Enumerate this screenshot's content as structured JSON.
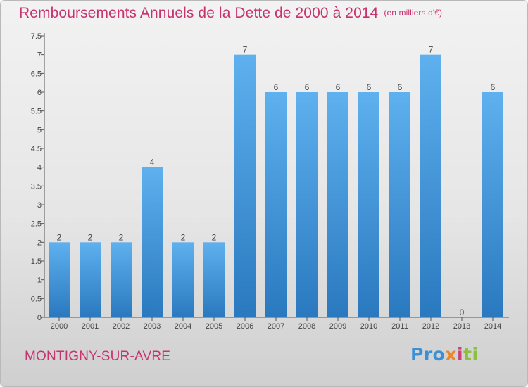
{
  "header": {
    "title": "Remboursements Annuels de la Dette de 2000 à 2014",
    "unit": "(en milliers d'€)"
  },
  "footer": {
    "commune": "MONTIGNY-SUR-AVRE",
    "brand_parts": [
      "Pro",
      "x",
      "i",
      "ti"
    ]
  },
  "colors": {
    "title": "#c8336e",
    "bar_light": "#5eb0ee",
    "bar_dark": "#2a79bf",
    "axis": "#555555",
    "brand_blue": "#3a8fd6",
    "brand_orange": "#e8892e",
    "brand_pink": "#cc3f7a",
    "brand_green": "#8bc03c"
  },
  "chart_data": {
    "type": "bar",
    "title": "Remboursements Annuels de la Dette de 2000 à 2014",
    "unit": "(en milliers d'€)",
    "categories": [
      "2000",
      "2001",
      "2002",
      "2003",
      "2004",
      "2005",
      "2006",
      "2007",
      "2008",
      "2009",
      "2010",
      "2011",
      "2012",
      "2013",
      "2014"
    ],
    "values": [
      2,
      2,
      2,
      4,
      2,
      2,
      7,
      6,
      6,
      6,
      6,
      6,
      7,
      0,
      6
    ],
    "ylim": [
      0,
      7.5
    ],
    "yticks": [
      "0",
      "0.5",
      "1",
      "1.5",
      "2",
      "2.5",
      "3",
      "3.5",
      "4",
      "4.5",
      "5",
      "5.5",
      "6",
      "6.5",
      "7",
      "7.5"
    ],
    "grid": false,
    "legend": "none"
  }
}
